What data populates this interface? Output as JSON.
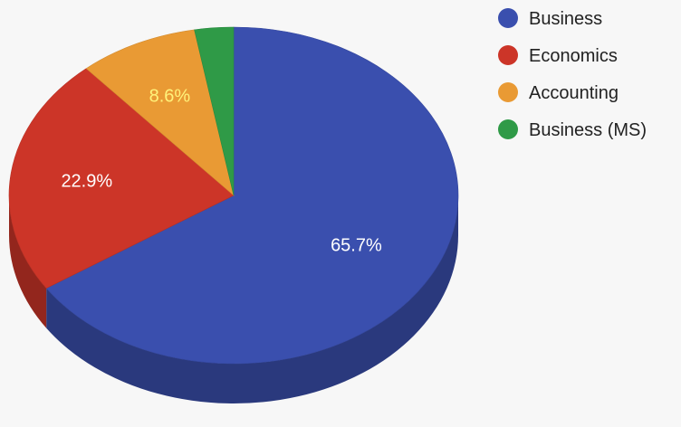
{
  "chart_data": {
    "type": "pie",
    "style": "3d",
    "title": "",
    "legend_position": "top-right",
    "slices": [
      {
        "label": "Business",
        "value": 65.7,
        "value_label": "65.7%",
        "color": "#3a4fae",
        "label_color": "#ffffff"
      },
      {
        "label": "Economics",
        "value": 22.9,
        "value_label": "22.9%",
        "color": "#cc3528",
        "label_color": "#ffffff"
      },
      {
        "label": "Accounting",
        "value": 8.6,
        "value_label": "8.6%",
        "color": "#e99a34",
        "label_color": "#fff27a"
      },
      {
        "label": "Business (MS)",
        "value": 2.8,
        "value_label": "",
        "color": "#2f9a47",
        "label_color": "#ffffff"
      }
    ]
  }
}
